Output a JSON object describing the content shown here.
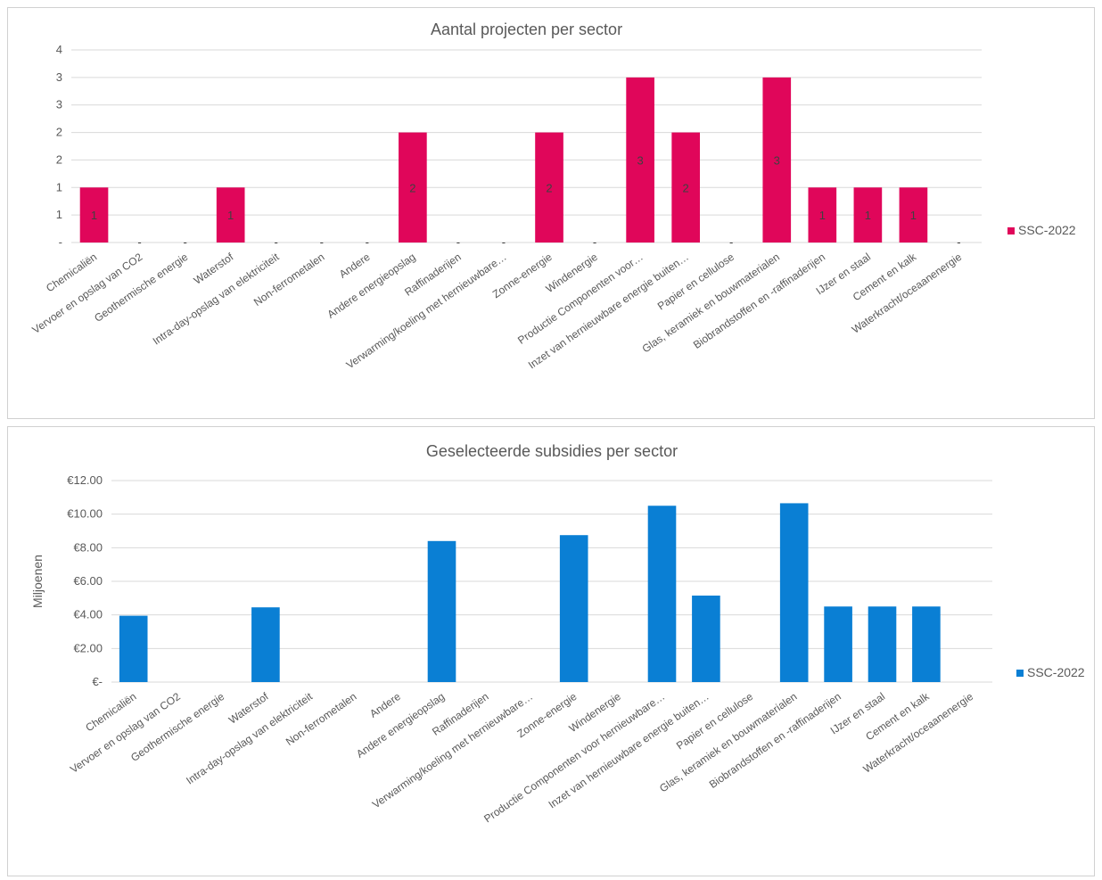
{
  "chart_data": [
    {
      "type": "bar",
      "title": "Aantal projecten per sector",
      "categories": [
        "Chemicaliën",
        "Vervoer en opslag van CO2",
        "Geothermische energie",
        "Waterstof",
        "Intra-day-opslag van elektriciteit",
        "Non-ferrometalen",
        "Andere",
        "Andere energieopslag",
        "Raffinaderijen",
        "Verwarming/koeling met hernieuwbare…",
        "Zonne-energie",
        "Windenergie",
        "Productie Componenten voor…",
        "Inzet van hernieuwbare energie buiten…",
        "Papier en cellulose",
        "Glas, keramiek en bouwmaterialen",
        "Biobrandstoffen en -raffinaderijen",
        "IJzer en staal",
        "Cement en kalk",
        "Waterkracht/oceaanenergie"
      ],
      "series": [
        {
          "name": "SSC-2022",
          "color": "#e0065a",
          "values": [
            1,
            0,
            0,
            1,
            0,
            0,
            0,
            2,
            0,
            0,
            2,
            0,
            3,
            2,
            0,
            3,
            1,
            1,
            1,
            0
          ],
          "data_labels": [
            "1",
            "-",
            "-",
            "1",
            "-",
            "-",
            "-",
            "2",
            "-",
            "-",
            "2",
            "-",
            "3",
            "2",
            "-",
            "3",
            "1",
            "1",
            "1",
            "-"
          ]
        }
      ],
      "y_ticks": [
        "-",
        "1",
        "1",
        "2",
        "2",
        "3",
        "3",
        "4"
      ],
      "ylim": [
        0,
        3.5
      ],
      "ylabel": "",
      "xlabel": "",
      "legend": "right",
      "grid": true
    },
    {
      "type": "bar",
      "title": "Geselecteerde subsidies per sector",
      "categories": [
        "Chemicaliën",
        "Vervoer en opslag van CO2",
        "Geothermische energie",
        "Waterstof",
        "Intra-day-opslag van elektriciteit",
        "Non-ferrometalen",
        "Andere",
        "Andere energieopslag",
        "Raffinaderijen",
        "Verwarming/koeling met hernieuwbare…",
        "Zonne-energie",
        "Windenergie",
        "Productie Componenten voor hernieuwbare…",
        "Inzet van hernieuwbare energie buiten…",
        "Papier en cellulose",
        "Glas, keramiek en bouwmaterialen",
        "Biobrandstoffen en -raffinaderijen",
        "IJzer en staal",
        "Cement en kalk",
        "Waterkracht/oceaanenergie"
      ],
      "series": [
        {
          "name": "SSC-2022",
          "color": "#0a7fd4",
          "values": [
            3.95,
            0,
            0,
            4.45,
            0,
            0,
            0,
            8.4,
            0,
            0,
            8.75,
            0,
            10.5,
            5.15,
            0,
            10.65,
            4.5,
            4.5,
            4.5,
            0
          ]
        }
      ],
      "y_ticks": [
        "€-",
        "€2.00",
        "€4.00",
        "€6.00",
        "€8.00",
        "€10.00",
        "€12.00"
      ],
      "ylim": [
        0,
        12
      ],
      "ylabel": "Miljoenen",
      "xlabel": "",
      "legend": "right",
      "grid": true
    }
  ]
}
